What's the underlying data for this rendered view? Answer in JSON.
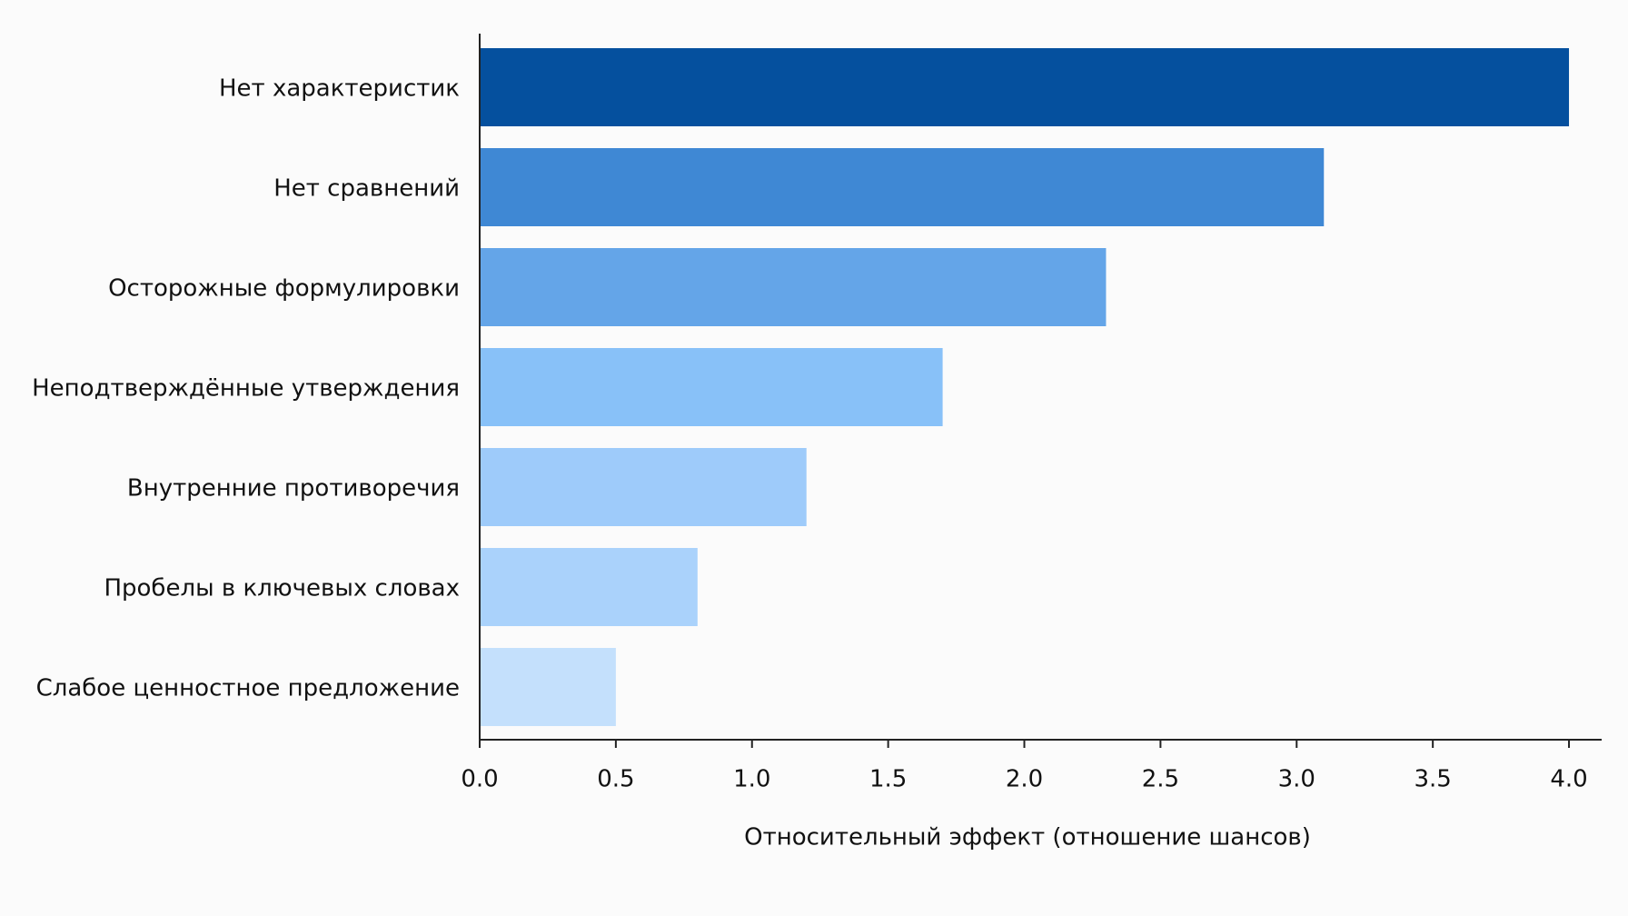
{
  "chart_data": {
    "type": "hbar",
    "xlabel": "Относительный эффект (отношение шансов)",
    "categories": [
      "Нет характеристик",
      "Нет сравнений",
      "Осторожные формулировки",
      "Неподтверждённые утверждения",
      "Внутренние противоречия",
      "Пробелы в ключевых словах",
      "Слабое ценностное предложение"
    ],
    "values": [
      4.0,
      3.1,
      2.3,
      1.7,
      1.2,
      0.8,
      0.5
    ],
    "colors": [
      "#05509e",
      "#3f88d4",
      "#64a5e8",
      "#88c1f8",
      "#9ecbfa",
      "#aad2fb",
      "#c4e0fc"
    ],
    "xlim": [
      0,
      4.12
    ],
    "xticks": [
      {
        "value": 0,
        "label": "0.0"
      },
      {
        "value": 0.5,
        "label": "0.5"
      },
      {
        "value": 1,
        "label": "1.0"
      },
      {
        "value": 1.5,
        "label": "1.5"
      },
      {
        "value": 2,
        "label": "2.0"
      },
      {
        "value": 2.5,
        "label": "2.5"
      },
      {
        "value": 3,
        "label": "3.0"
      },
      {
        "value": 3.5,
        "label": "3.5"
      },
      {
        "value": 4,
        "label": "4.0"
      }
    ]
  }
}
